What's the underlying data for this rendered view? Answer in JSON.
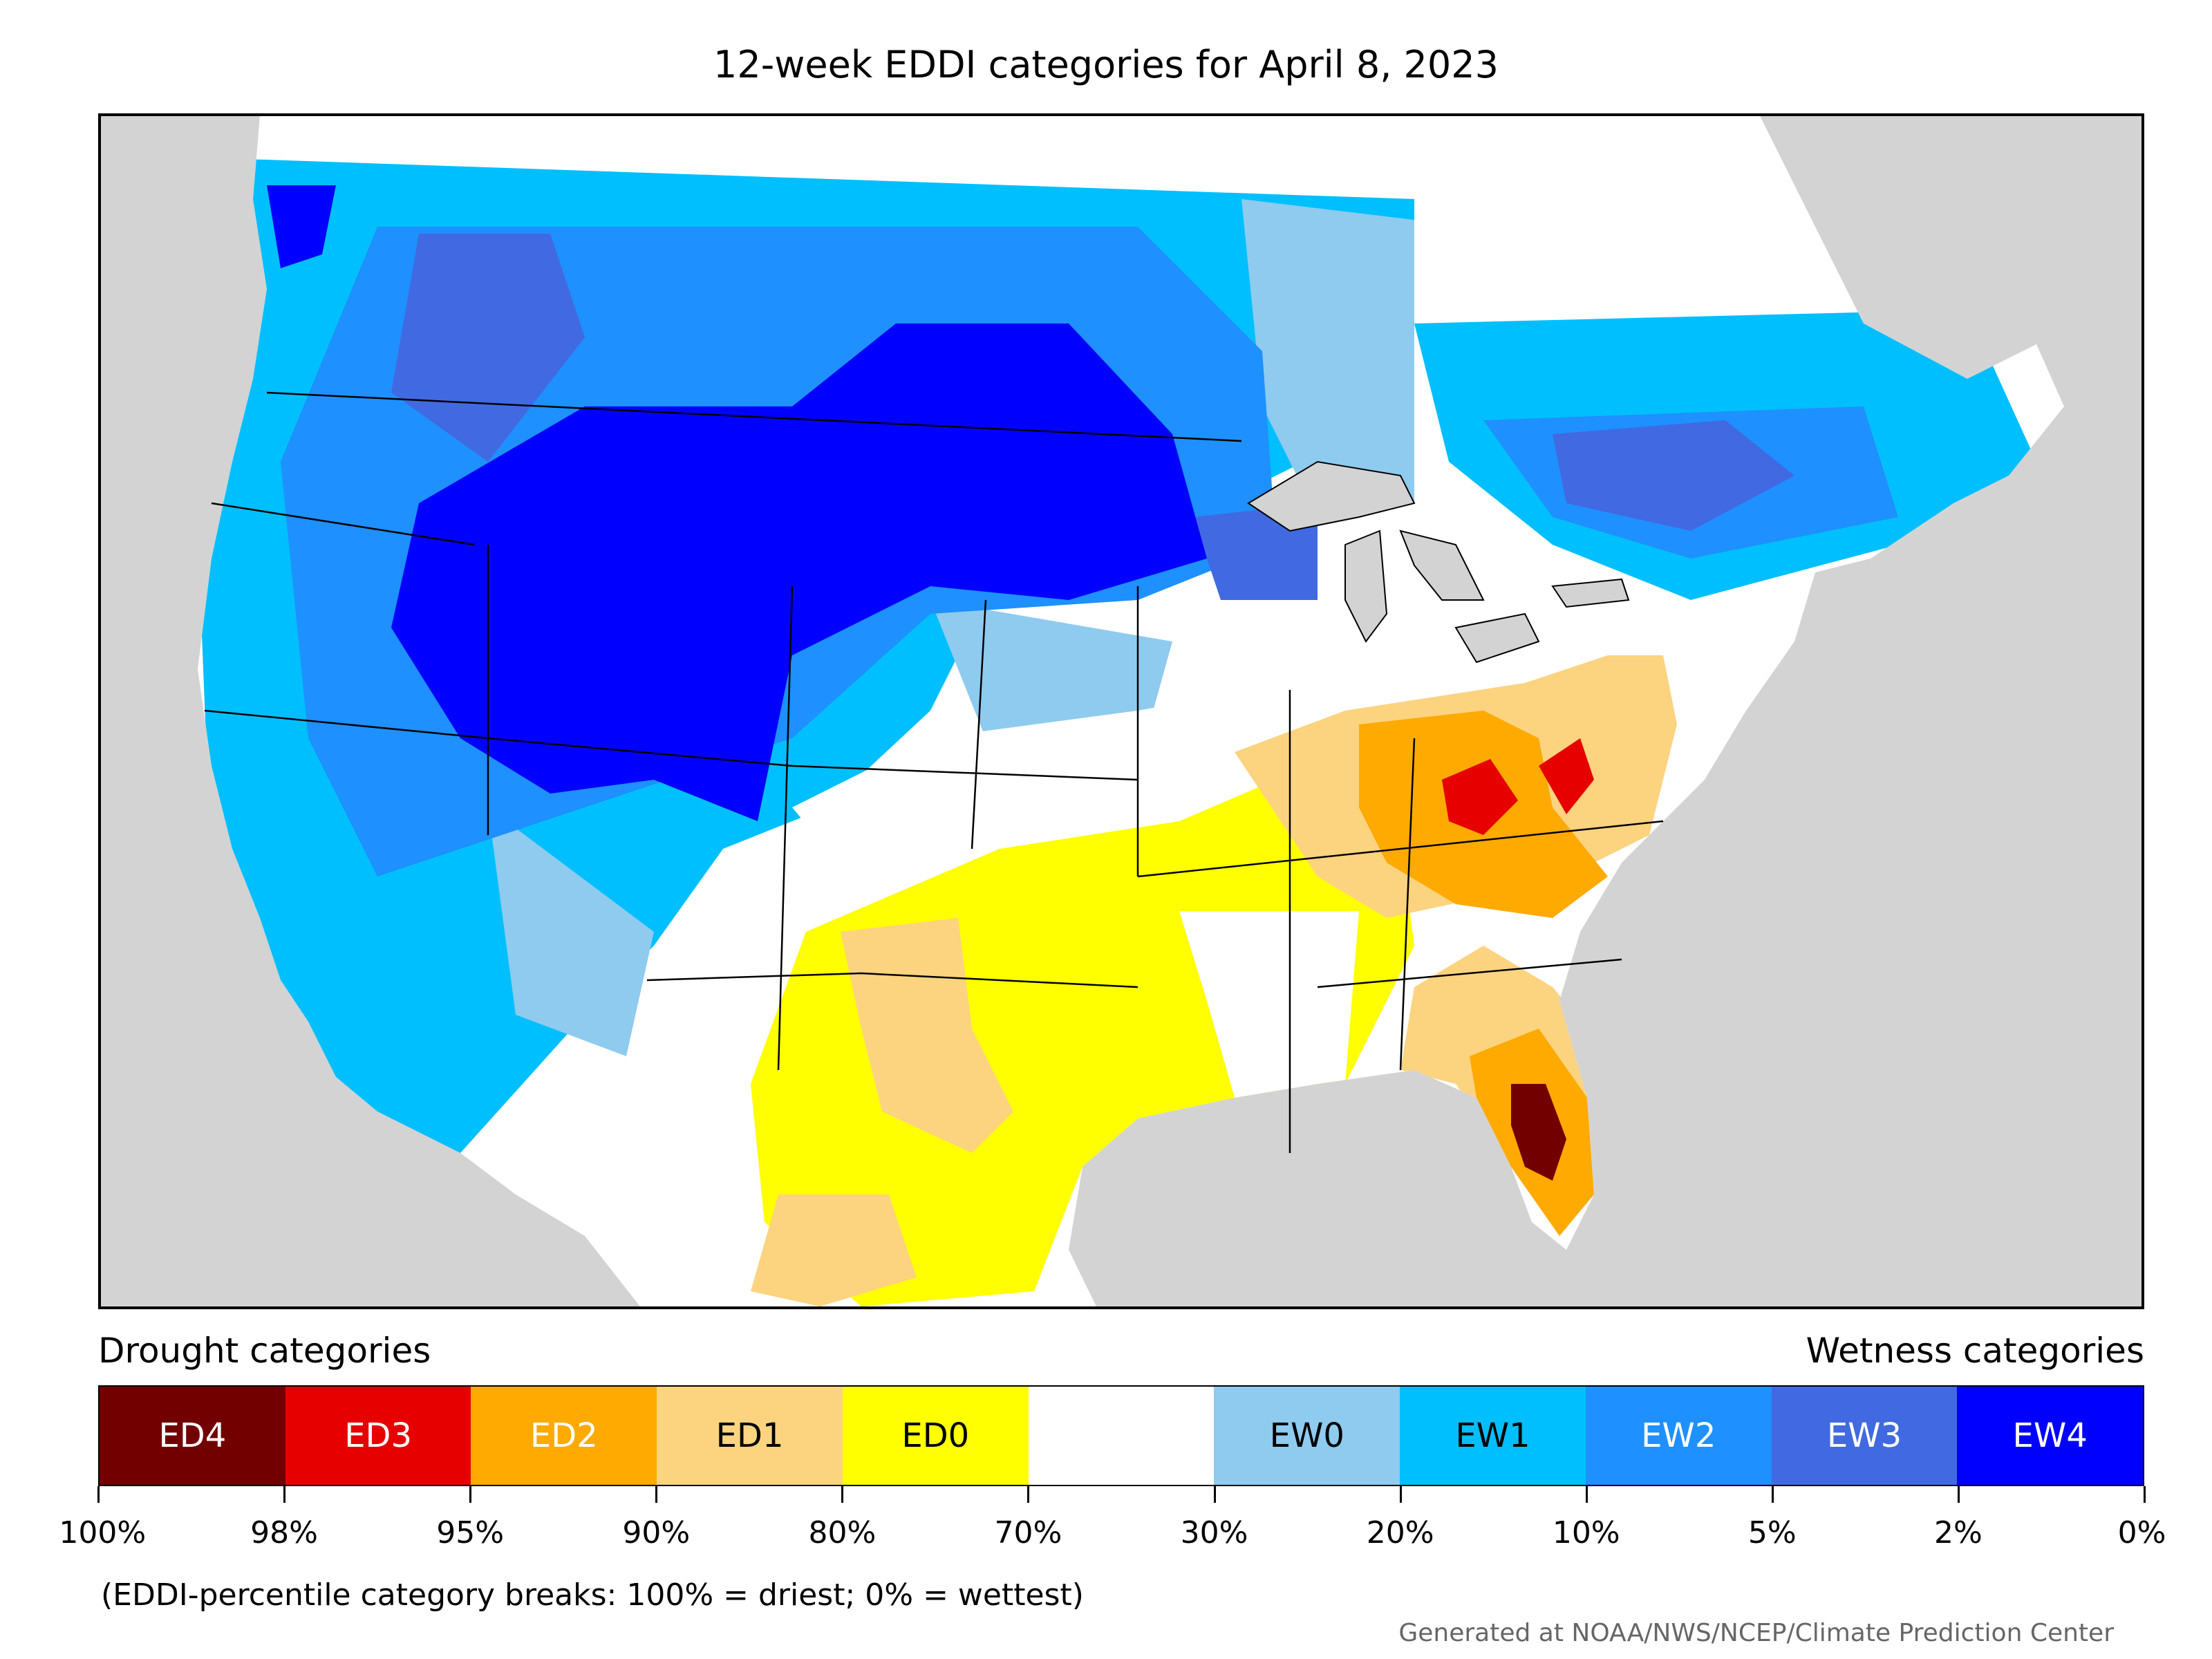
{
  "title": "12-week EDDI categories for April 8, 2023",
  "legend": {
    "drought_heading": "Drought categories",
    "wetness_heading": "Wetness categories",
    "categories": [
      {
        "label": "ED4",
        "color": "#730000",
        "text_color": "#ffffff"
      },
      {
        "label": "ED3",
        "color": "#e60000",
        "text_color": "#ffffff"
      },
      {
        "label": "ED2",
        "color": "#ffaa00",
        "text_color": "#ffffff"
      },
      {
        "label": "ED1",
        "color": "#fcd37f",
        "text_color": "#000000"
      },
      {
        "label": "ED0",
        "color": "#ffff00",
        "text_color": "#000000"
      },
      {
        "label": "",
        "color": "#ffffff",
        "text_color": "#000000"
      },
      {
        "label": "EW0",
        "color": "#8ecbef",
        "text_color": "#000000"
      },
      {
        "label": "EW1",
        "color": "#00bfff",
        "text_color": "#000000"
      },
      {
        "label": "EW2",
        "color": "#1e90ff",
        "text_color": "#ffffff"
      },
      {
        "label": "EW3",
        "color": "#4169e1",
        "text_color": "#ffffff"
      },
      {
        "label": "EW4",
        "color": "#0000ff",
        "text_color": "#ffffff"
      }
    ],
    "tick_labels": [
      "100%",
      "98%",
      "95%",
      "90%",
      "80%",
      "70%",
      "30%",
      "20%",
      "10%",
      "5%",
      "2%",
      "0%"
    ],
    "note": "(EDDI-percentile category breaks: 100% = driest; 0% = wettest)"
  },
  "credit": "Generated at NOAA/NWS/NCEP/Climate Prediction Center",
  "map_colors": {
    "ocean": "#d3d3d3",
    "lakes": "#d3d3d3",
    "borders": "#000000"
  }
}
